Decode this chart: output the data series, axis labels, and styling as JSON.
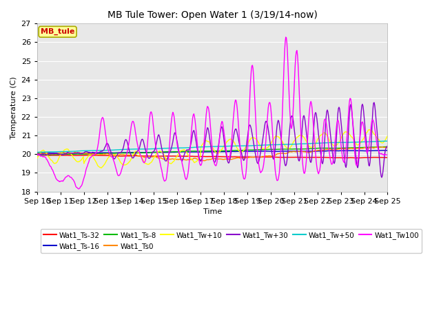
{
  "title": "MB Tule Tower: Open Water 1 (3/19/14-now)",
  "xlabel": "Time",
  "ylabel": "Temperature (C)",
  "ylim": [
    18.0,
    27.0
  ],
  "yticks": [
    18.0,
    19.0,
    20.0,
    21.0,
    22.0,
    23.0,
    24.0,
    25.0,
    26.0,
    27.0
  ],
  "xtick_labels": [
    "Sep 10",
    "Sep 11",
    "Sep 12",
    "Sep 13",
    "Sep 14",
    "Sep 15",
    "Sep 16",
    "Sep 17",
    "Sep 18",
    "Sep 19",
    "Sep 20",
    "Sep 21",
    "Sep 22",
    "Sep 23",
    "Sep 24",
    "Sep 25"
  ],
  "series_colors": {
    "Wat1_Ts-32": "#ff0000",
    "Wat1_Ts-16": "#0000cc",
    "Wat1_Ts-8": "#00bb00",
    "Wat1_Ts0": "#ff8800",
    "Wat1_Tw+10": "#ffff00",
    "Wat1_Tw+30": "#8800cc",
    "Wat1_Tw+50": "#00cccc",
    "Wat1_Tw100": "#ff00ff"
  },
  "annotation_text": "MB_tule",
  "annotation_color": "#cc0000",
  "annotation_bg": "#ffff99",
  "annotation_edge": "#aaaa00",
  "background_color": "#e8e8e8",
  "grid_color": "#ffffff",
  "fig_bg": "#ffffff"
}
